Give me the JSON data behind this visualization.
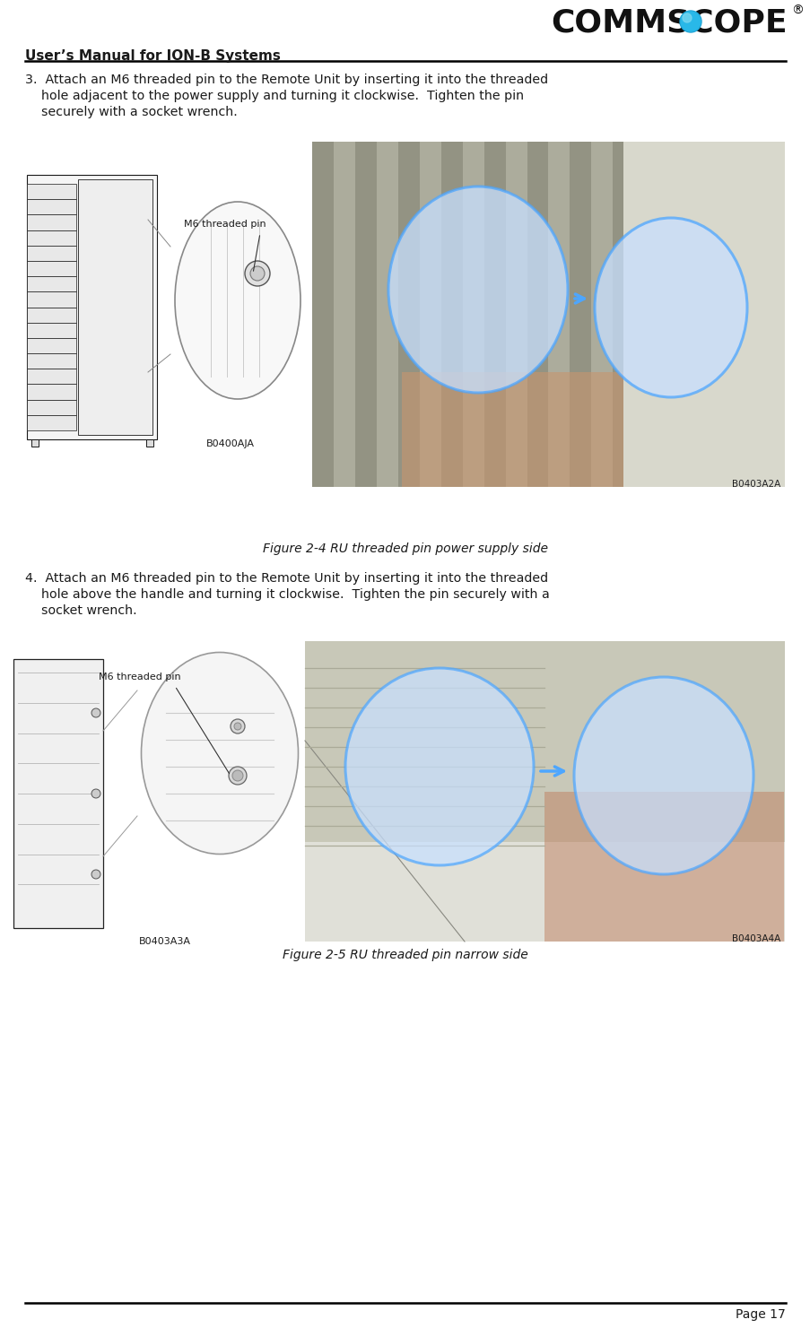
{
  "page_title": "User’s Manual for ION-B Systems",
  "page_number": "Page 17",
  "logo_text": "COMMSCOPE",
  "logo_registered": "®",
  "section3_lines": [
    "3.  Attach an M6 threaded pin to the Remote Unit by inserting it into the threaded",
    "    hole adjacent to the power supply and turning it clockwise.  Tighten the pin",
    "    securely with a socket wrench."
  ],
  "section4_lines": [
    "4.  Attach an M6 threaded pin to the Remote Unit by inserting it into the threaded",
    "    hole above the handle and turning it clockwise.  Tighten the pin securely with a",
    "    socket wrench."
  ],
  "figure2_4_caption": "Figure 2-4 RU threaded pin power supply side",
  "figure2_5_caption": "Figure 2-5 RU threaded pin narrow side",
  "label_m6_1": "M6 threaded pin",
  "label_m6_2": "M6 threaded pin",
  "code_b0400aja": "B0400AJA",
  "code_b0403a2a": "B0403A2A",
  "code_b0403a3a": "B0403A3A",
  "code_b0403a4a": "B0403A4A",
  "bg_color": "#ffffff",
  "text_color": "#1a1a1a",
  "header_line_color": "#000000",
  "footer_line_color": "#000000",
  "blue_circle_color": "#4da6ff",
  "blue_fill_color": "#c8e0ff",
  "photo_bg1": "#b8b8a8",
  "photo_bg2": "#c0c0b0",
  "sketch_color": "#2a2a2a",
  "sketch_fill": "#f0f0f0"
}
